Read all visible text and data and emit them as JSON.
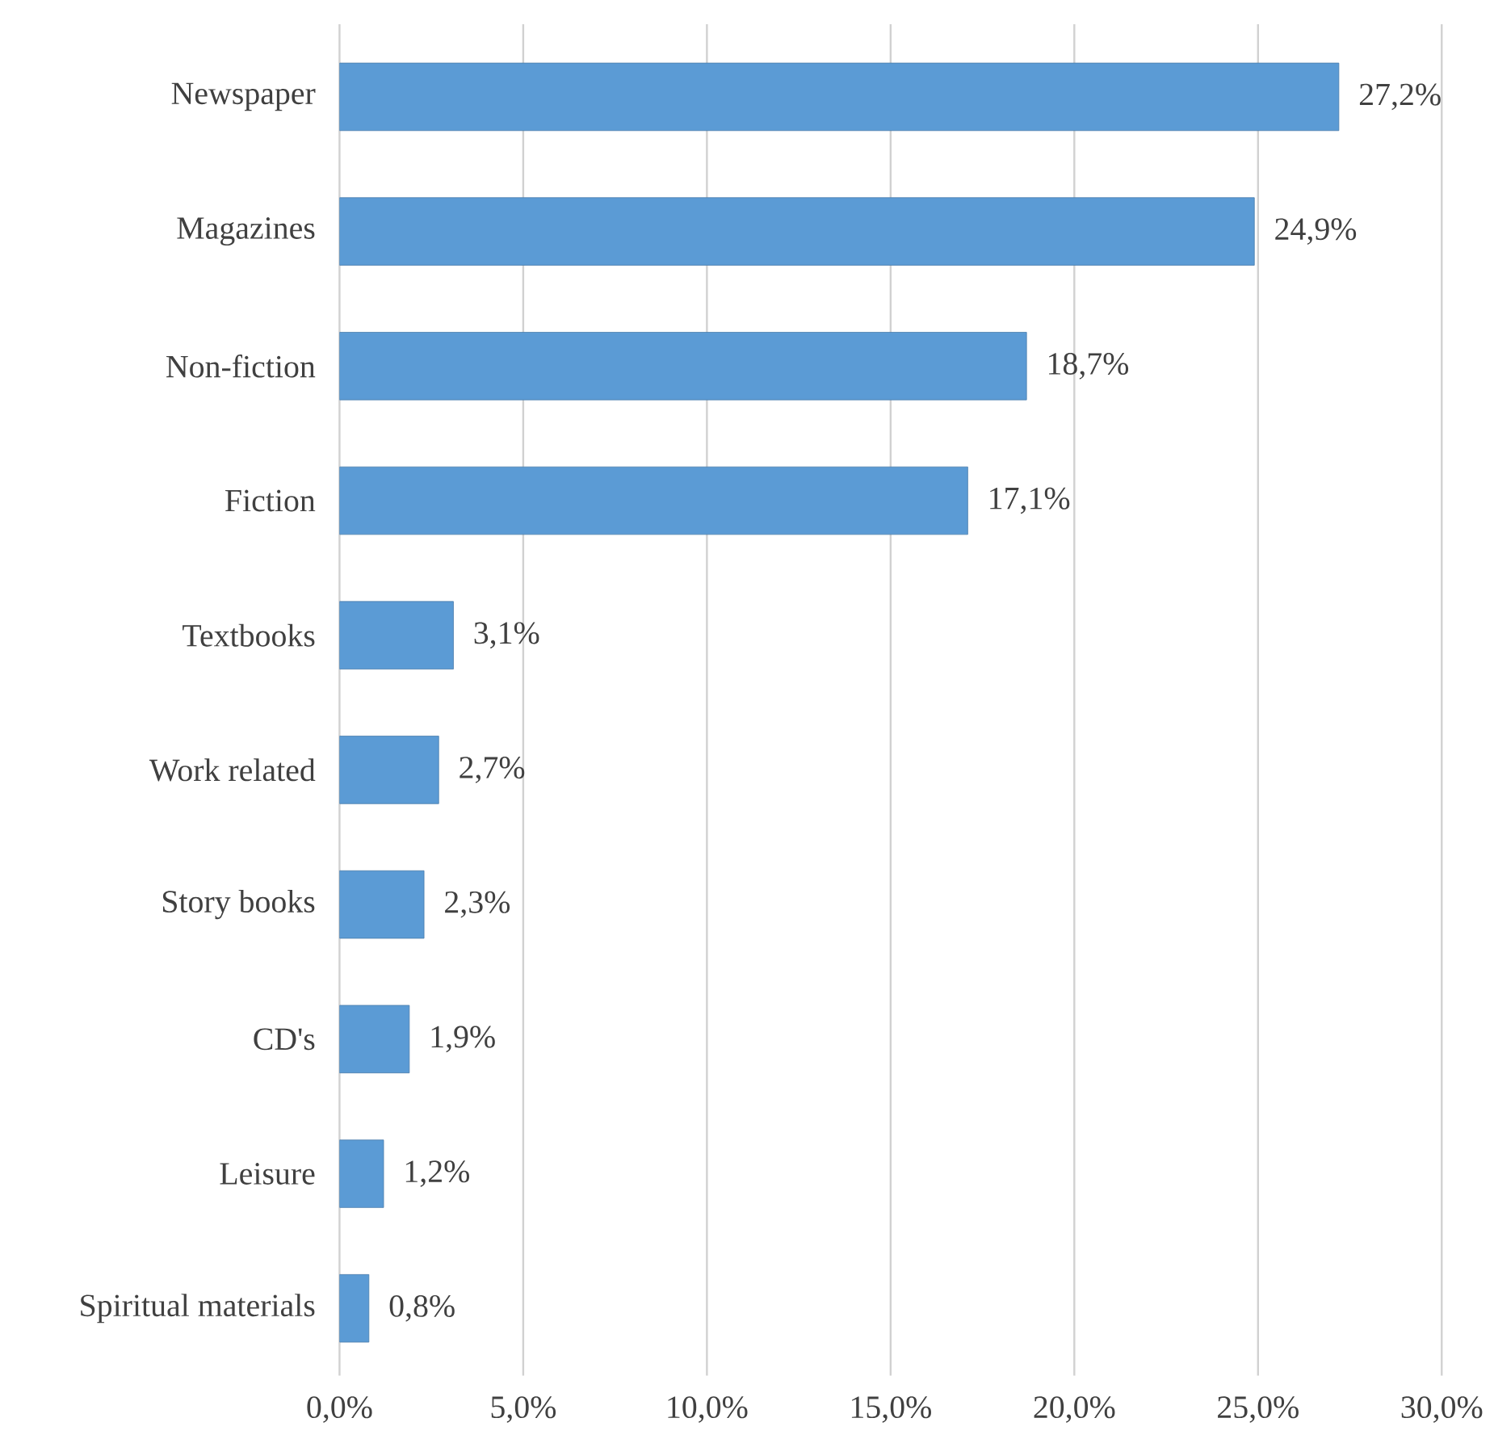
{
  "chart_data": {
    "type": "bar",
    "orientation": "horizontal",
    "categories": [
      "Newspaper",
      "Magazines",
      "Non-fiction",
      "Fiction",
      "Textbooks",
      "Work related",
      "Story books",
      "CD's",
      "Leisure",
      "Spiritual materials"
    ],
    "values": [
      27.2,
      24.9,
      18.7,
      17.1,
      3.1,
      2.7,
      2.3,
      1.9,
      1.2,
      0.8
    ],
    "value_labels": [
      "27,2%",
      "24,9%",
      "18,7%",
      "17,1%",
      "3,1%",
      "2,7%",
      "2,3%",
      "1,9%",
      "1,2%",
      "0,8%"
    ],
    "color": "#5b9bd5",
    "xlim": [
      0,
      30
    ],
    "xticks": [
      {
        "value": 0,
        "label": "0,0%"
      },
      {
        "value": 5,
        "label": "5,0%"
      },
      {
        "value": 10,
        "label": "10,0%"
      },
      {
        "value": 15,
        "label": "15,0%"
      },
      {
        "value": 20,
        "label": "20,0%"
      },
      {
        "value": 25,
        "label": "25,0%"
      },
      {
        "value": 30,
        "label": "30,0%"
      }
    ],
    "grid": "x"
  }
}
